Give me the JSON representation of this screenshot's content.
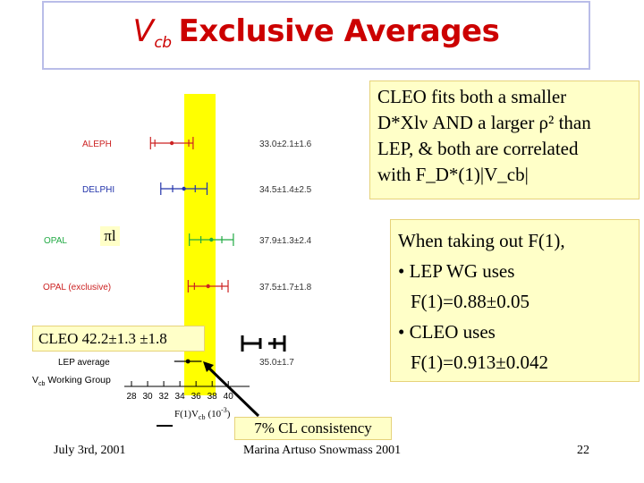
{
  "title": {
    "main": "V",
    "sub": "cb",
    "rest": "Exclusive Averages"
  },
  "plot": {
    "experiments": [
      {
        "name": "ALEPH",
        "value": "33.0±2.1±1.6",
        "color": "#cc2222"
      },
      {
        "name": "DELPHI",
        "value": "34.5±1.4±2.5",
        "color": "#2233aa"
      },
      {
        "name": "OPAL",
        "value": "37.9±1.3±2.4",
        "color": "#22aa44"
      },
      {
        "name": "OPAL (exclusive)",
        "value": "37.5±1.7±1.8",
        "color": "#cc2222"
      }
    ],
    "average": {
      "name": "LEP average",
      "value": "35.0±1.7"
    },
    "group": "Working Group",
    "group_prefix": "V",
    "group_sub": "cb",
    "xaxis_label": "F(1)V",
    "xaxis_sub": "cb",
    "xaxis_unit": "(10",
    "xaxis_exp": "-3",
    "xaxis_close": ")",
    "xticks": [
      "28",
      "30",
      "32",
      "34",
      "36",
      "38",
      "40"
    ]
  },
  "chart_data": {
    "type": "scatter",
    "xlabel": "F(1)V_cb (10^-3)",
    "xlim": [
      27,
      41
    ],
    "xticks": [
      28,
      30,
      32,
      34,
      36,
      38,
      40
    ],
    "points": [
      {
        "label": "ALEPH",
        "value": 33.0,
        "stat": 2.1,
        "syst": 1.6
      },
      {
        "label": "DELPHI",
        "value": 34.5,
        "stat": 1.4,
        "syst": 2.5
      },
      {
        "label": "OPAL",
        "value": 37.9,
        "stat": 1.3,
        "syst": 2.4
      },
      {
        "label": "OPAL (exclusive)",
        "value": 37.5,
        "stat": 1.7,
        "syst": 1.8
      },
      {
        "label": "LEP average",
        "value": 35.0,
        "err": 1.7
      }
    ],
    "band": {
      "center": 35.0,
      "half_width": 1.7,
      "color": "#ffff00"
    }
  },
  "notes": {
    "top": {
      "l1": "CLEO fits both a smaller",
      "l2": "D*Xlν  AND a larger ρ² than",
      "l3": "LEP, & both are correlated",
      "l4": "with F_D*(1)|V_cb|"
    },
    "right": {
      "l1": "When taking out F(1),",
      "l2": "• LEP WG uses",
      "l3": "F(1)=0.88±0.05",
      "l4": "• CLEO uses",
      "l5": "F(1)=0.913±0.042"
    },
    "cleo": "CLEO  42.2±1.3 ±1.8",
    "pil": "πl",
    "cl": "7%  CL consistency"
  },
  "footer": {
    "date": "July 3rd, 2001",
    "author": "Marina Artuso Snowmass 2001",
    "page": "22"
  }
}
